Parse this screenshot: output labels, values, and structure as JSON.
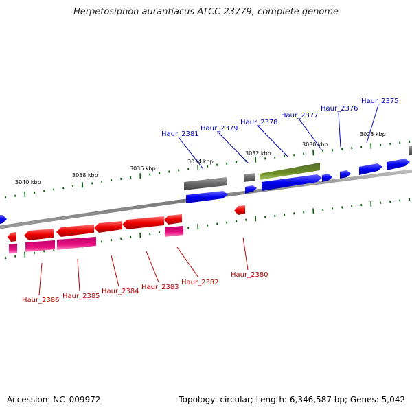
{
  "title": "Herpetosiphon aurantiacus ATCC 23779, complete genome",
  "accession": "Accession: NC_009972",
  "topology": "Topology: circular; Length: 6,346,587 bp; Genes: 5,042",
  "colors": {
    "forward": "#0000ee",
    "reverse": "#ee0000",
    "gray": "#6a6a6a",
    "olive": "#6b8e23",
    "magenta": "#e6117f",
    "tick": "#006400",
    "backbone": "#888888"
  },
  "ticks": [
    {
      "label": "3040 kbp"
    },
    {
      "label": "3038 kbp"
    },
    {
      "label": "3036 kbp"
    },
    {
      "label": "3034 kbp"
    },
    {
      "label": "3032 kbp"
    },
    {
      "label": "3030 kbp"
    },
    {
      "label": "3028 kbp"
    }
  ],
  "top_labels": [
    {
      "name": "Haur_2381"
    },
    {
      "name": "Haur_2379"
    },
    {
      "name": "Haur_2378"
    },
    {
      "name": "Haur_2377"
    },
    {
      "name": "Haur_2376"
    },
    {
      "name": "Haur_2375"
    }
  ],
  "bottom_labels": [
    {
      "name": "Haur_2386"
    },
    {
      "name": "Haur_2385"
    },
    {
      "name": "Haur_2384"
    },
    {
      "name": "Haur_2383"
    },
    {
      "name": "Haur_2382"
    },
    {
      "name": "Haur_2380"
    }
  ]
}
